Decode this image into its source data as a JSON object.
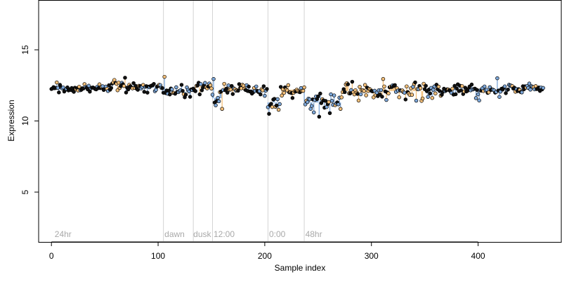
{
  "chart_data": {
    "type": "scatter",
    "title": "",
    "xlabel": "Sample index",
    "ylabel": "Expression",
    "xlim": [
      -12,
      478
    ],
    "ylim": [
      1.5,
      18.5
    ],
    "xticks": [
      0,
      100,
      200,
      300,
      400
    ],
    "yticks": [
      5,
      10,
      15
    ],
    "grid": false,
    "legend": "none",
    "colors": {
      "blue": "#7da7d9",
      "orange": "#f5c07a",
      "black": "#111111",
      "divider": "#d4d4d4",
      "annotation": "#a9a9a9",
      "axis": "#000000"
    },
    "annotations": [
      {
        "label": "24hr",
        "x": 3
      },
      {
        "label": "dawn",
        "x": 106
      },
      {
        "label": "dusk",
        "x": 133
      },
      {
        "label": "12:00",
        "x": 152
      },
      {
        "label": "0:00",
        "x": 204
      },
      {
        "label": "48hr",
        "x": 238
      }
    ],
    "dividers": [
      105,
      133,
      151,
      203,
      237
    ],
    "segments": [
      {
        "x0": 0,
        "x1": 58,
        "mean": 12.3,
        "sd": 0.17,
        "color": "blue",
        "orangeFrac": 0.1,
        "blackFrac": 0.6
      },
      {
        "x0": 58,
        "x1": 70,
        "mean": 12.6,
        "sd": 0.18,
        "color": "orange",
        "orangeFrac": 0.7,
        "blackFrac": 0.2
      },
      {
        "x0": 70,
        "x1": 104,
        "mean": 12.35,
        "sd": 0.17,
        "color": "blue",
        "orangeFrac": 0.15,
        "blackFrac": 0.6
      },
      {
        "x0": 104,
        "x1": 133,
        "mean": 12.05,
        "sd": 0.2,
        "color": "blue",
        "orangeFrac": 0.15,
        "blackFrac": 0.5
      },
      {
        "x0": 133,
        "x1": 151,
        "mean": 12.35,
        "sd": 0.2,
        "color": "orange",
        "orangeFrac": 0.6,
        "blackFrac": 0.3
      },
      {
        "x0": 151,
        "x1": 160,
        "mean": 11.6,
        "sd": 0.35,
        "color": "blue",
        "orangeFrac": 0.15,
        "blackFrac": 0.4
      },
      {
        "x0": 160,
        "x1": 182,
        "mean": 12.3,
        "sd": 0.2,
        "color": "orange",
        "orangeFrac": 0.55,
        "blackFrac": 0.3
      },
      {
        "x0": 182,
        "x1": 203,
        "mean": 12.2,
        "sd": 0.2,
        "color": "blue",
        "orangeFrac": 0.2,
        "blackFrac": 0.5
      },
      {
        "x0": 203,
        "x1": 215,
        "mean": 11.3,
        "sd": 0.3,
        "color": "blue",
        "orangeFrac": 0.1,
        "blackFrac": 0.4
      },
      {
        "x0": 215,
        "x1": 237,
        "mean": 12.2,
        "sd": 0.2,
        "color": "orange",
        "orangeFrac": 0.5,
        "blackFrac": 0.35
      },
      {
        "x0": 237,
        "x1": 272,
        "mean": 11.3,
        "sd": 0.35,
        "color": "blue",
        "orangeFrac": 0.25,
        "blackFrac": 0.4
      },
      {
        "x0": 272,
        "x1": 350,
        "mean": 12.1,
        "sd": 0.3,
        "color": "orange",
        "orangeFrac": 0.45,
        "blackFrac": 0.35
      },
      {
        "x0": 350,
        "x1": 420,
        "mean": 12.15,
        "sd": 0.22,
        "color": "blue",
        "orangeFrac": 0.15,
        "blackFrac": 0.5
      },
      {
        "x0": 420,
        "x1": 462,
        "mean": 12.3,
        "sd": 0.18,
        "color": "blue",
        "orangeFrac": 0.15,
        "blackFrac": 0.55
      }
    ],
    "outliers": [
      {
        "x": 106,
        "y": 13.1
      },
      {
        "x": 152,
        "y": 12.95
      },
      {
        "x": 154,
        "y": 11.1
      },
      {
        "x": 160,
        "y": 10.85
      },
      {
        "x": 204,
        "y": 10.5
      },
      {
        "x": 246,
        "y": 10.6
      },
      {
        "x": 251,
        "y": 10.3
      },
      {
        "x": 261,
        "y": 10.55
      },
      {
        "x": 271,
        "y": 10.85
      },
      {
        "x": 311,
        "y": 12.95
      },
      {
        "x": 418,
        "y": 13.0
      }
    ]
  }
}
